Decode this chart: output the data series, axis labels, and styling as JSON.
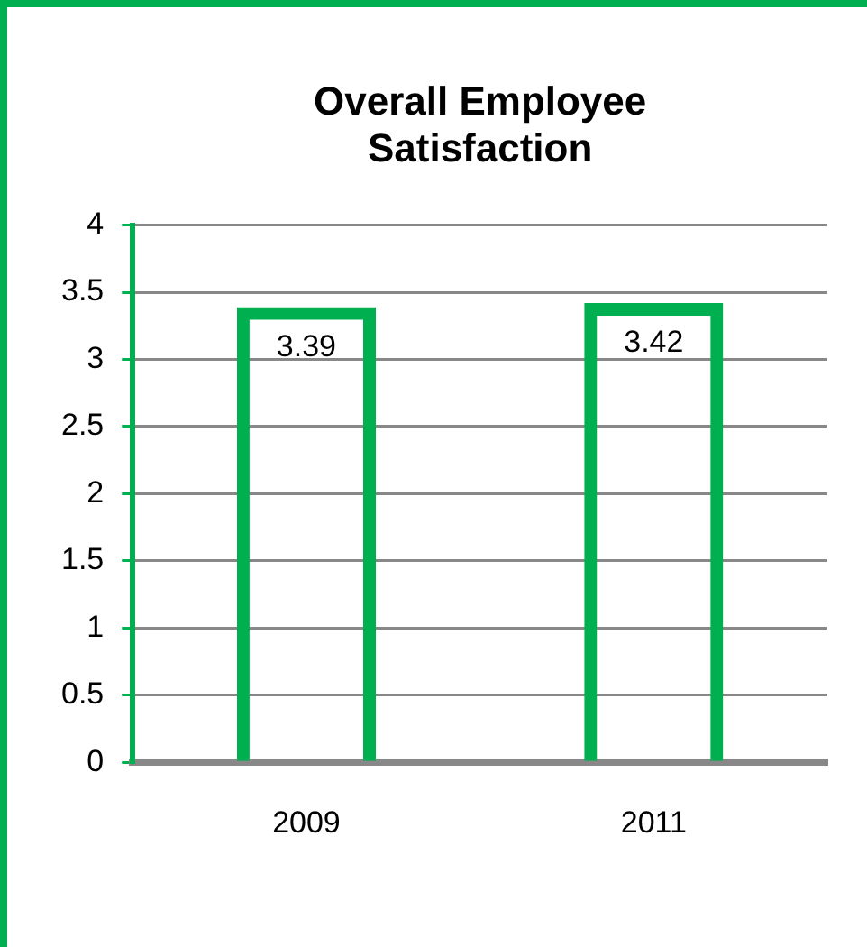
{
  "chart_data": {
    "type": "bar",
    "title": "Overall Employee Satisfaction",
    "categories": [
      "2009",
      "2011"
    ],
    "series": [
      {
        "color": "#00b050",
        "values": [
          3.39,
          3.42
        ]
      }
    ],
    "ylim": [
      0,
      4
    ],
    "yticks": [
      0,
      0.5,
      1,
      1.5,
      2,
      2.5,
      3,
      3.5,
      4
    ],
    "grid": "y",
    "legend": false,
    "data_labels": true
  }
}
